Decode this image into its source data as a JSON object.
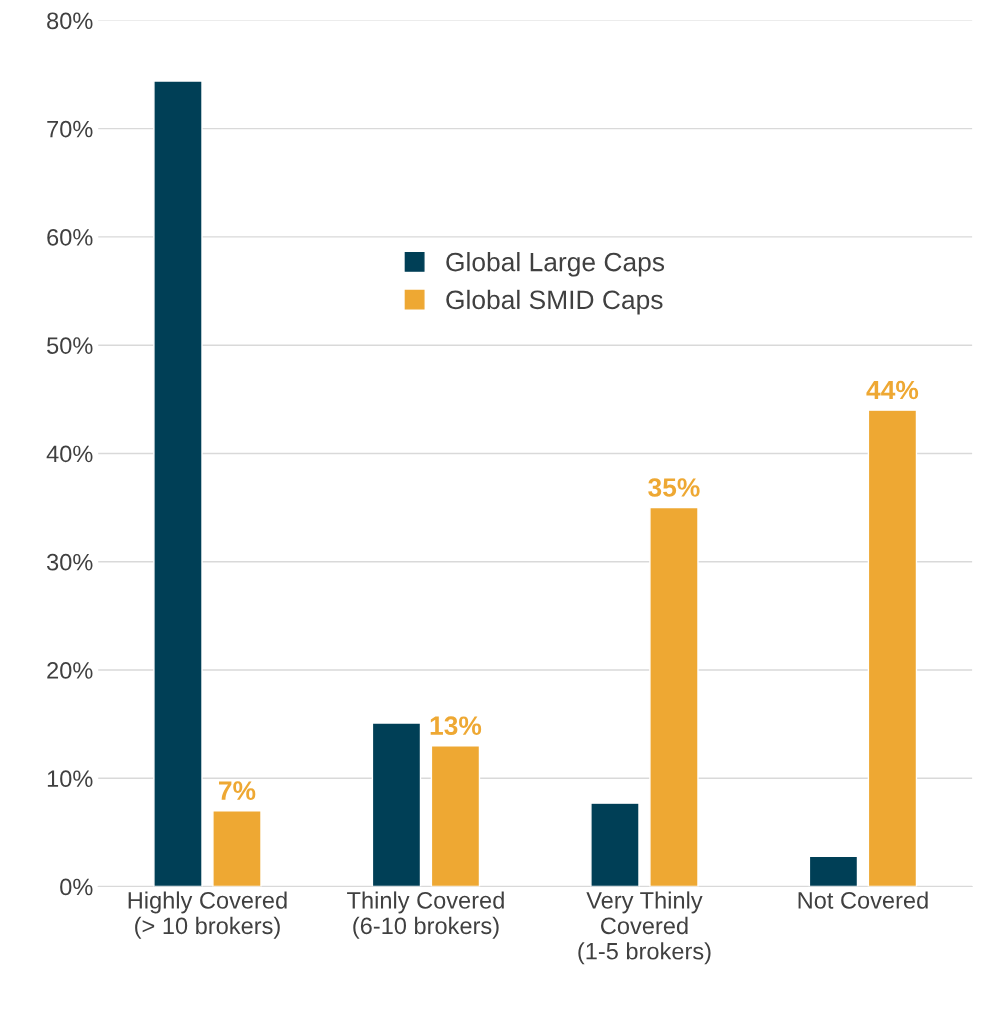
{
  "chart_data": {
    "type": "bar",
    "categories": [
      "Highly Covered\n(> 10 brokers)",
      "Thinly Covered\n(6-10 brokers)",
      "Very Thinly\nCovered\n(1-5 brokers)",
      "Not Covered"
    ],
    "series": [
      {
        "name": "Global Large Caps",
        "color": "#003f56",
        "values": [
          74.4,
          15.1,
          7.7,
          2.8
        ]
      },
      {
        "name": "Global SMID Caps",
        "color": "#eea833",
        "values": [
          7,
          13,
          35,
          44
        ],
        "value_labels": [
          "7%",
          "13%",
          "35%",
          "44%"
        ]
      }
    ],
    "ylim": [
      0,
      80
    ],
    "yticks": [
      {
        "value": 0,
        "label": "0%"
      },
      {
        "value": 10,
        "label": "10%"
      },
      {
        "value": 20,
        "label": "20%"
      },
      {
        "value": 30,
        "label": "30%"
      },
      {
        "value": 40,
        "label": "40%"
      },
      {
        "value": 50,
        "label": "50%"
      },
      {
        "value": 60,
        "label": "60%"
      },
      {
        "value": 70,
        "label": "70%"
      },
      {
        "value": 80,
        "label": "80%"
      }
    ],
    "grid": "y",
    "legend": "top"
  }
}
